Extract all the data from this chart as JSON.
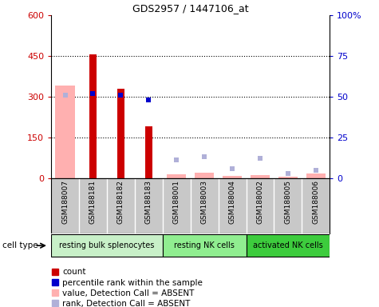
{
  "title": "GDS2957 / 1447106_at",
  "samples": [
    "GSM188007",
    "GSM188181",
    "GSM188182",
    "GSM188183",
    "GSM188001",
    "GSM188003",
    "GSM188004",
    "GSM188002",
    "GSM188005",
    "GSM188006"
  ],
  "cell_types": [
    {
      "label": "resting bulk splenocytes",
      "start": 0,
      "end": 4,
      "color": "#c8f0c8"
    },
    {
      "label": "resting NK cells",
      "start": 4,
      "end": 7,
      "color": "#90ee90"
    },
    {
      "label": "activated NK cells",
      "start": 7,
      "end": 10,
      "color": "#3dcc3d"
    }
  ],
  "count_values": [
    null,
    455,
    330,
    190,
    null,
    null,
    null,
    null,
    null,
    null
  ],
  "percentile_values_pct": [
    null,
    52,
    51,
    48,
    null,
    null,
    null,
    null,
    null,
    null
  ],
  "absent_value_values": [
    340,
    null,
    null,
    null,
    15,
    20,
    8,
    10,
    5,
    18
  ],
  "absent_rank_values_pct": [
    51,
    null,
    null,
    null,
    11,
    13,
    6,
    12,
    3,
    5
  ],
  "ylim_left": [
    0,
    600
  ],
  "ylim_right": [
    0,
    100
  ],
  "yticks_left": [
    0,
    150,
    300,
    450,
    600
  ],
  "yticks_right": [
    0,
    25,
    50,
    75,
    100
  ],
  "ytick_right_labels": [
    "0",
    "25",
    "50",
    "75",
    "100%"
  ],
  "colors": {
    "count": "#cc0000",
    "percentile": "#0000cc",
    "absent_value": "#ffb0b0",
    "absent_rank": "#b0b0d8",
    "sample_bg": "#c8c8c8",
    "cell_type_text": "#000000"
  },
  "legend": [
    {
      "label": "count",
      "color": "#cc0000"
    },
    {
      "label": "percentile rank within the sample",
      "color": "#0000cc"
    },
    {
      "label": "value, Detection Call = ABSENT",
      "color": "#ffb0b0"
    },
    {
      "label": "rank, Detection Call = ABSENT",
      "color": "#b0b0d8"
    }
  ]
}
